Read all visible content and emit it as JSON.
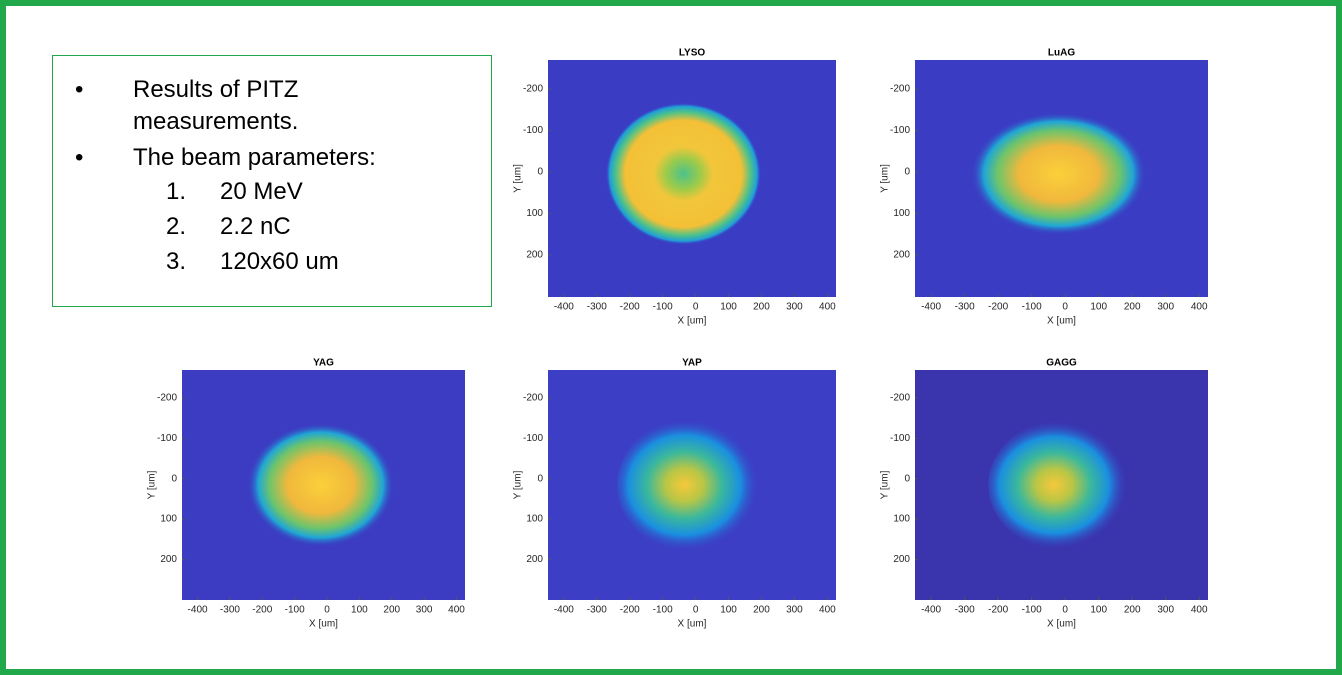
{
  "box": {
    "bullets": [
      {
        "marker": "•",
        "text": "Results of PITZ",
        "cont": "measurements."
      },
      {
        "marker": "•",
        "text": "The beam parameters:"
      }
    ],
    "items": [
      {
        "marker": "1.",
        "text": "20 MeV"
      },
      {
        "marker": "2.",
        "text": "2.2 nC"
      },
      {
        "marker": "3.",
        "text": "120x60 um"
      }
    ]
  },
  "panels": [
    {
      "title": "LYSO",
      "xlabel": "X [um]",
      "ylabel": "Y [um]",
      "xticks": [
        -400,
        -300,
        -200,
        -100,
        0,
        100,
        200,
        300,
        400
      ],
      "yticks": [
        -200,
        -100,
        0,
        100,
        200
      ]
    },
    {
      "title": "LuAG",
      "xlabel": "X [um]",
      "ylabel": "Y [um]",
      "xticks": [
        -400,
        -300,
        -200,
        -100,
        0,
        100,
        200,
        300,
        400
      ],
      "yticks": [
        -200,
        -100,
        0,
        100,
        200
      ]
    },
    {
      "title": "YAG",
      "xlabel": "X [um]",
      "ylabel": "Y [um]",
      "xticks": [
        -400,
        -300,
        -200,
        -100,
        0,
        100,
        200,
        300,
        400
      ],
      "yticks": [
        -200,
        -100,
        0,
        100,
        200
      ]
    },
    {
      "title": "YAP",
      "xlabel": "X [um]",
      "ylabel": "Y [um]",
      "xticks": [
        -400,
        -300,
        -200,
        -100,
        0,
        100,
        200,
        300,
        400
      ],
      "yticks": [
        -200,
        -100,
        0,
        100,
        200
      ]
    },
    {
      "title": "GAGG",
      "xlabel": "X [um]",
      "ylabel": "Y [um]",
      "xticks": [
        -400,
        -300,
        -200,
        -100,
        0,
        100,
        200,
        300,
        400
      ],
      "yticks": [
        -200,
        -100,
        0,
        100,
        200
      ]
    }
  ]
}
